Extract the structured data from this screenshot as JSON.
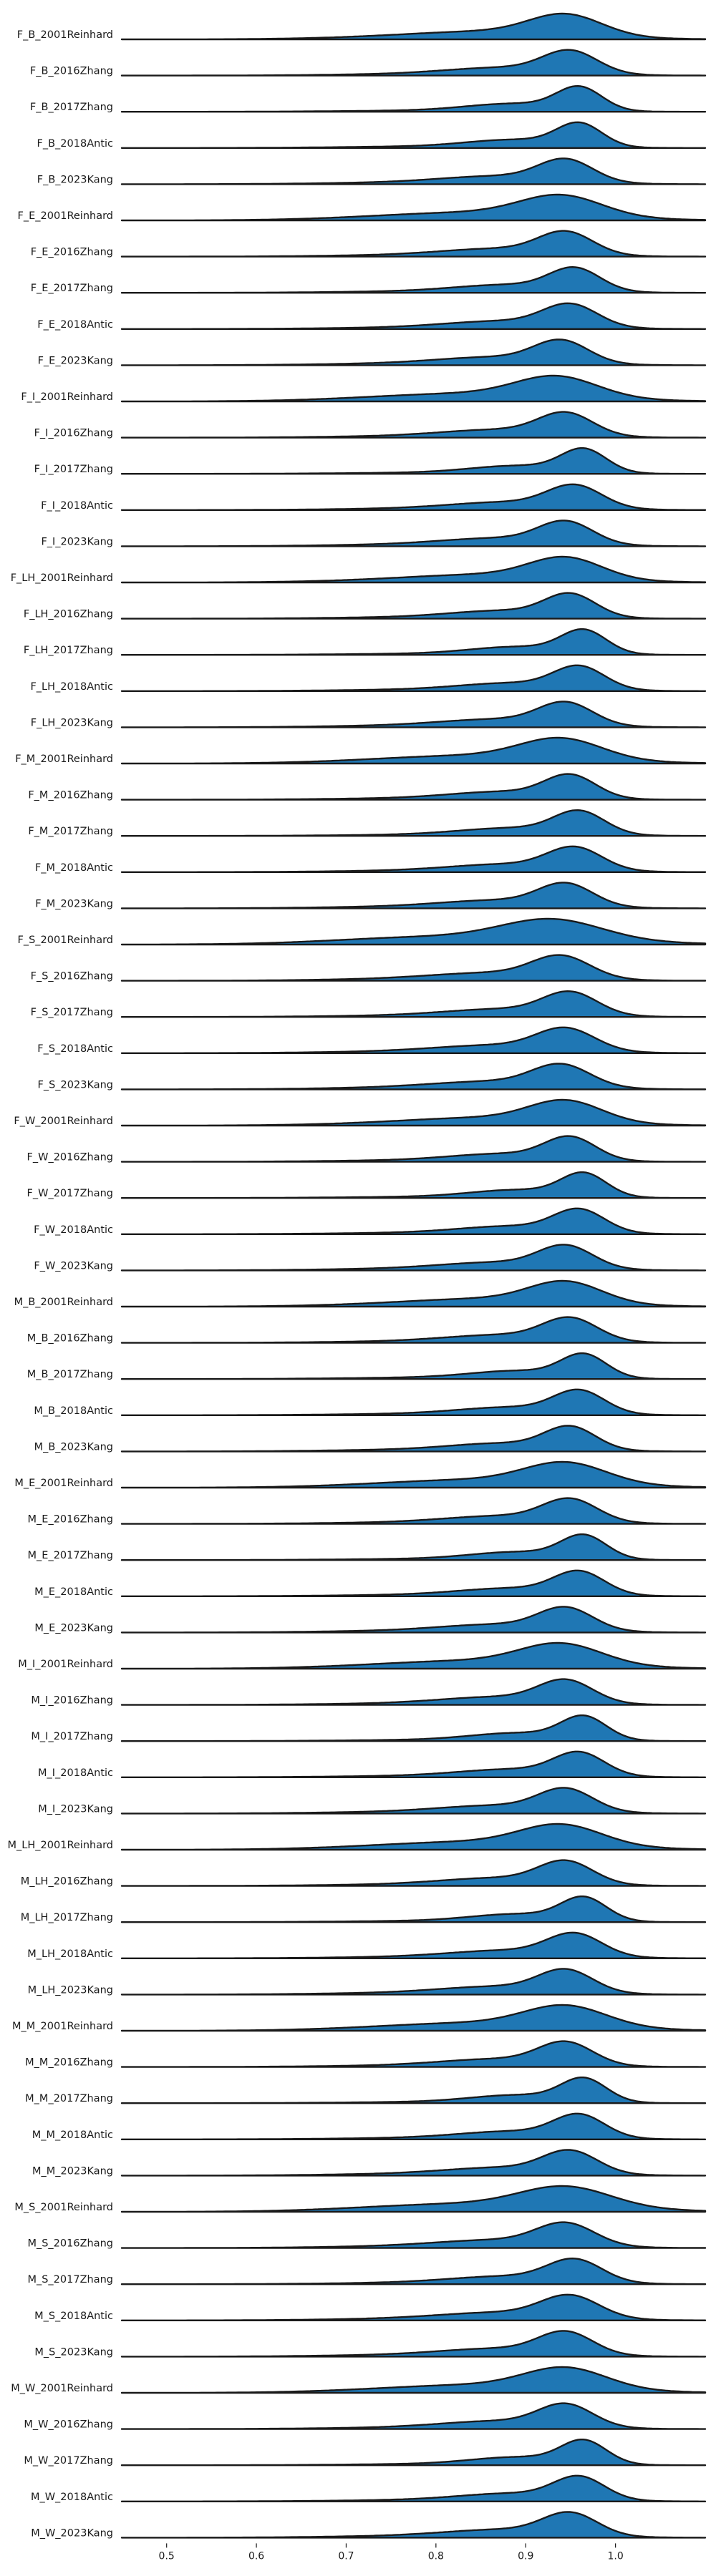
{
  "chart_data": {
    "type": "ridgeline",
    "xlim": [
      0.45,
      1.1
    ],
    "x_ticks": [
      0.5,
      0.6,
      0.7,
      0.8,
      0.9,
      1.0
    ],
    "x_tick_labels": [
      "0.5",
      "0.6",
      "0.7",
      "0.8",
      "0.9",
      "1.0"
    ],
    "grid": false,
    "fill_color": "#1f77b4",
    "line_color": "#1a1a1a",
    "series": [
      {
        "name": "F_B_2001Reinhard",
        "peak": 0.945,
        "spread": 0.04,
        "tail": 0.8
      },
      {
        "name": "F_B_2016Zhang",
        "peak": 0.95,
        "spread": 0.03,
        "tail": 0.5
      },
      {
        "name": "F_B_2017Zhang",
        "peak": 0.96,
        "spread": 0.025,
        "tail": 0.4
      },
      {
        "name": "F_B_2018Antic",
        "peak": 0.96,
        "spread": 0.025,
        "tail": 0.5
      },
      {
        "name": "F_B_2023Kang",
        "peak": 0.945,
        "spread": 0.03,
        "tail": 0.6
      },
      {
        "name": "F_E_2001Reinhard",
        "peak": 0.94,
        "spread": 0.045,
        "tail": 0.9
      },
      {
        "name": "F_E_2016Zhang",
        "peak": 0.945,
        "spread": 0.03,
        "tail": 0.5
      },
      {
        "name": "F_E_2017Zhang",
        "peak": 0.955,
        "spread": 0.028,
        "tail": 0.5
      },
      {
        "name": "F_E_2018Antic",
        "peak": 0.95,
        "spread": 0.03,
        "tail": 0.5
      },
      {
        "name": "F_E_2023Kang",
        "peak": 0.94,
        "spread": 0.03,
        "tail": 0.6
      },
      {
        "name": "F_I_2001Reinhard",
        "peak": 0.935,
        "spread": 0.045,
        "tail": 0.9
      },
      {
        "name": "F_I_2016Zhang",
        "peak": 0.945,
        "spread": 0.03,
        "tail": 0.5
      },
      {
        "name": "F_I_2017Zhang",
        "peak": 0.965,
        "spread": 0.025,
        "tail": 0.4
      },
      {
        "name": "F_I_2018Antic",
        "peak": 0.955,
        "spread": 0.03,
        "tail": 0.5
      },
      {
        "name": "F_I_2023Kang",
        "peak": 0.945,
        "spread": 0.03,
        "tail": 0.6
      },
      {
        "name": "F_LH_2001Reinhard",
        "peak": 0.945,
        "spread": 0.04,
        "tail": 0.8
      },
      {
        "name": "F_LH_2016Zhang",
        "peak": 0.95,
        "spread": 0.028,
        "tail": 0.5
      },
      {
        "name": "F_LH_2017Zhang",
        "peak": 0.965,
        "spread": 0.025,
        "tail": 0.4
      },
      {
        "name": "F_LH_2018Antic",
        "peak": 0.96,
        "spread": 0.028,
        "tail": 0.5
      },
      {
        "name": "F_LH_2023Kang",
        "peak": 0.945,
        "spread": 0.03,
        "tail": 0.6
      },
      {
        "name": "F_M_2001Reinhard",
        "peak": 0.94,
        "spread": 0.045,
        "tail": 0.9
      },
      {
        "name": "F_M_2016Zhang",
        "peak": 0.95,
        "spread": 0.028,
        "tail": 0.5
      },
      {
        "name": "F_M_2017Zhang",
        "peak": 0.96,
        "spread": 0.028,
        "tail": 0.4
      },
      {
        "name": "F_M_2018Antic",
        "peak": 0.955,
        "spread": 0.03,
        "tail": 0.5
      },
      {
        "name": "F_M_2023Kang",
        "peak": 0.945,
        "spread": 0.03,
        "tail": 0.6
      },
      {
        "name": "F_S_2001Reinhard",
        "peak": 0.93,
        "spread": 0.055,
        "tail": 1.0
      },
      {
        "name": "F_S_2016Zhang",
        "peak": 0.94,
        "spread": 0.032,
        "tail": 0.6
      },
      {
        "name": "F_S_2017Zhang",
        "peak": 0.95,
        "spread": 0.03,
        "tail": 0.5
      },
      {
        "name": "F_S_2018Antic",
        "peak": 0.945,
        "spread": 0.032,
        "tail": 0.6
      },
      {
        "name": "F_S_2023Kang",
        "peak": 0.94,
        "spread": 0.032,
        "tail": 0.6
      },
      {
        "name": "F_W_2001Reinhard",
        "peak": 0.945,
        "spread": 0.04,
        "tail": 0.8
      },
      {
        "name": "F_W_2016Zhang",
        "peak": 0.95,
        "spread": 0.028,
        "tail": 0.5
      },
      {
        "name": "F_W_2017Zhang",
        "peak": 0.965,
        "spread": 0.025,
        "tail": 0.4
      },
      {
        "name": "F_W_2018Antic",
        "peak": 0.96,
        "spread": 0.028,
        "tail": 0.5
      },
      {
        "name": "F_W_2023Kang",
        "peak": 0.945,
        "spread": 0.03,
        "tail": 0.6
      },
      {
        "name": "M_B_2001Reinhard",
        "peak": 0.945,
        "spread": 0.04,
        "tail": 0.8
      },
      {
        "name": "M_B_2016Zhang",
        "peak": 0.95,
        "spread": 0.03,
        "tail": 0.5
      },
      {
        "name": "M_B_2017Zhang",
        "peak": 0.965,
        "spread": 0.025,
        "tail": 0.5
      },
      {
        "name": "M_B_2018Antic",
        "peak": 0.96,
        "spread": 0.028,
        "tail": 0.5
      },
      {
        "name": "M_B_2023Kang",
        "peak": 0.95,
        "spread": 0.028,
        "tail": 0.6
      },
      {
        "name": "M_E_2001Reinhard",
        "peak": 0.945,
        "spread": 0.045,
        "tail": 0.9
      },
      {
        "name": "M_E_2016Zhang",
        "peak": 0.95,
        "spread": 0.03,
        "tail": 0.5
      },
      {
        "name": "M_E_2017Zhang",
        "peak": 0.965,
        "spread": 0.025,
        "tail": 0.4
      },
      {
        "name": "M_E_2018Antic",
        "peak": 0.96,
        "spread": 0.028,
        "tail": 0.5
      },
      {
        "name": "M_E_2023Kang",
        "peak": 0.945,
        "spread": 0.03,
        "tail": 0.6
      },
      {
        "name": "M_I_2001Reinhard",
        "peak": 0.94,
        "spread": 0.045,
        "tail": 0.9
      },
      {
        "name": "M_I_2016Zhang",
        "peak": 0.945,
        "spread": 0.03,
        "tail": 0.5
      },
      {
        "name": "M_I_2017Zhang",
        "peak": 0.965,
        "spread": 0.025,
        "tail": 0.4
      },
      {
        "name": "M_I_2018Antic",
        "peak": 0.96,
        "spread": 0.028,
        "tail": 0.5
      },
      {
        "name": "M_I_2023Kang",
        "peak": 0.945,
        "spread": 0.03,
        "tail": 0.6
      },
      {
        "name": "M_LH_2001Reinhard",
        "peak": 0.94,
        "spread": 0.045,
        "tail": 0.9
      },
      {
        "name": "M_LH_2016Zhang",
        "peak": 0.945,
        "spread": 0.03,
        "tail": 0.5
      },
      {
        "name": "M_LH_2017Zhang",
        "peak": 0.965,
        "spread": 0.025,
        "tail": 0.4
      },
      {
        "name": "M_LH_2018Antic",
        "peak": 0.955,
        "spread": 0.03,
        "tail": 0.5
      },
      {
        "name": "M_LH_2023Kang",
        "peak": 0.945,
        "spread": 0.03,
        "tail": 0.6
      },
      {
        "name": "M_M_2001Reinhard",
        "peak": 0.945,
        "spread": 0.045,
        "tail": 0.9
      },
      {
        "name": "M_M_2016Zhang",
        "peak": 0.945,
        "spread": 0.03,
        "tail": 0.5
      },
      {
        "name": "M_M_2017Zhang",
        "peak": 0.965,
        "spread": 0.025,
        "tail": 0.4
      },
      {
        "name": "M_M_2018Antic",
        "peak": 0.96,
        "spread": 0.028,
        "tail": 0.5
      },
      {
        "name": "M_M_2023Kang",
        "peak": 0.95,
        "spread": 0.03,
        "tail": 0.6
      },
      {
        "name": "M_S_2001Reinhard",
        "peak": 0.945,
        "spread": 0.05,
        "tail": 1.0
      },
      {
        "name": "M_S_2016Zhang",
        "peak": 0.945,
        "spread": 0.032,
        "tail": 0.6
      },
      {
        "name": "M_S_2017Zhang",
        "peak": 0.955,
        "spread": 0.03,
        "tail": 0.5
      },
      {
        "name": "M_S_2018Antic",
        "peak": 0.95,
        "spread": 0.032,
        "tail": 0.6
      },
      {
        "name": "M_S_2023Kang",
        "peak": 0.945,
        "spread": 0.03,
        "tail": 0.6
      },
      {
        "name": "M_W_2001Reinhard",
        "peak": 0.945,
        "spread": 0.045,
        "tail": 0.9
      },
      {
        "name": "M_W_2016Zhang",
        "peak": 0.945,
        "spread": 0.03,
        "tail": 0.5
      },
      {
        "name": "M_W_2017Zhang",
        "peak": 0.965,
        "spread": 0.025,
        "tail": 0.4
      },
      {
        "name": "M_W_2018Antic",
        "peak": 0.96,
        "spread": 0.028,
        "tail": 0.5
      },
      {
        "name": "M_W_2023Kang",
        "peak": 0.95,
        "spread": 0.03,
        "tail": 0.6
      }
    ]
  }
}
